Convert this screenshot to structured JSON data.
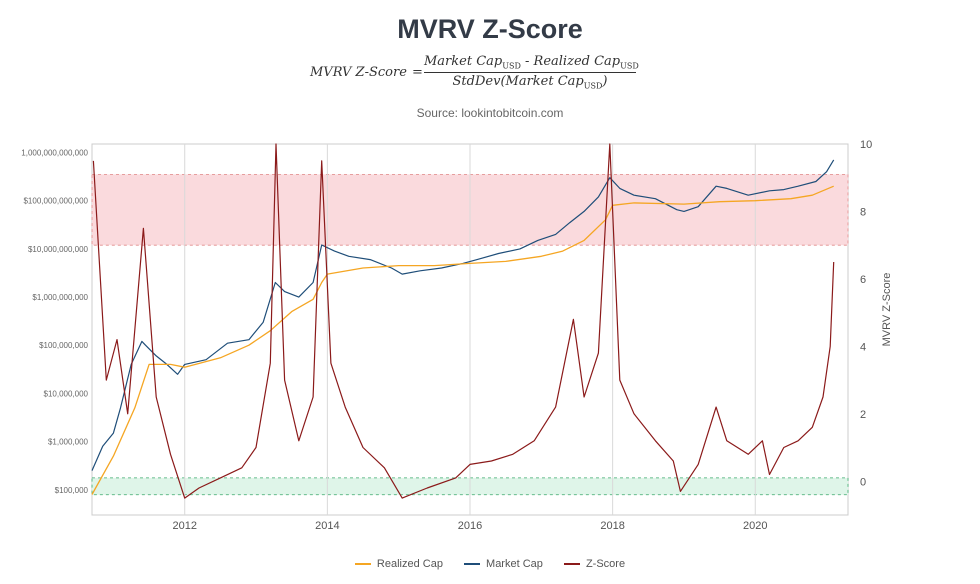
{
  "title": "MVRV Z-Score",
  "formula": {
    "lhs": "MVRV Z-Score",
    "eq": "=",
    "num_a": "Market Cap",
    "num_a_sub": "USD",
    "num_op": " - ",
    "num_b": "Realized Cap",
    "num_b_sub": "USD",
    "den_a": "StdDev(Market Cap",
    "den_a_sub": "USD",
    "den_b": ")"
  },
  "source": "Source: lookintobitcoin.com",
  "colors": {
    "realized": "#f5a623",
    "market": "#1f4e79",
    "zscore": "#8b1a1a",
    "red_band": "#fadadd",
    "green_band": "#dff5e9"
  },
  "chart_data": {
    "type": "line",
    "x_range": [
      2010.7,
      2021.3
    ],
    "x_ticks": [
      2012,
      2014,
      2016,
      2018,
      2020
    ],
    "x_tick_labels": [
      "2012",
      "2014",
      "2016",
      "2018",
      "2020"
    ],
    "left_axis": {
      "scale": "log",
      "range": [
        30000,
        1500000000000
      ],
      "ticks": [
        100000,
        1000000,
        10000000,
        100000000,
        1000000000,
        10000000000,
        100000000000,
        1000000000000
      ],
      "tick_labels": [
        "$100,000",
        "$1,000,000",
        "$10,000,000",
        "$100,000,000",
        "$1,000,000,000",
        "$10,000,000,000",
        "$100,000,000,000",
        "1,000,000,000,000"
      ]
    },
    "right_axis": {
      "label": "MVRV Z-Score",
      "range": [
        -1,
        10
      ],
      "ticks": [
        0,
        2,
        4,
        6,
        8,
        10
      ],
      "tick_labels": [
        "0",
        "2",
        "4",
        "6",
        "8",
        "10"
      ]
    },
    "bands": {
      "red_zone": [
        7,
        9.1
      ],
      "green_zone": [
        -0.4,
        0.1
      ]
    },
    "legend": [
      "Realized Cap",
      "Market Cap",
      "Z-Score"
    ],
    "series": [
      {
        "name": "Market Cap",
        "axis": "left",
        "x": [
          2010.7,
          2010.85,
          2011.0,
          2011.1,
          2011.25,
          2011.4,
          2011.45,
          2011.6,
          2011.75,
          2011.9,
          2012.0,
          2012.3,
          2012.6,
          2012.9,
          2013.1,
          2013.27,
          2013.4,
          2013.6,
          2013.8,
          2013.92,
          2014.1,
          2014.3,
          2014.6,
          2014.9,
          2015.05,
          2015.3,
          2015.6,
          2015.9,
          2016.1,
          2016.4,
          2016.7,
          2016.95,
          2017.2,
          2017.4,
          2017.6,
          2017.8,
          2017.96,
          2018.1,
          2018.3,
          2018.6,
          2018.9,
          2019.0,
          2019.2,
          2019.45,
          2019.6,
          2019.9,
          2020.2,
          2020.4,
          2020.6,
          2020.85,
          2021.0,
          2021.1
        ],
        "y": [
          250000,
          800000,
          1500000,
          5000000,
          40000000,
          120000000,
          100000000,
          60000000,
          40000000,
          25000000,
          40000000,
          50000000,
          110000000,
          130000000,
          300000000,
          2000000000,
          1300000000,
          1000000000,
          2000000000,
          12000000000,
          9000000000,
          7000000000,
          6000000000,
          4000000000,
          3000000000,
          3500000000,
          4000000000,
          5000000000,
          6000000000,
          8000000000,
          10000000000,
          15000000000,
          20000000000,
          35000000000,
          60000000000,
          120000000000,
          300000000000,
          180000000000,
          130000000000,
          110000000000,
          65000000000,
          60000000000,
          75000000000,
          200000000000,
          180000000000,
          130000000000,
          160000000000,
          170000000000,
          200000000000,
          250000000000,
          400000000000,
          700000000000
        ]
      },
      {
        "name": "Realized Cap",
        "axis": "left",
        "x": [
          2010.7,
          2011.0,
          2011.3,
          2011.5,
          2011.8,
          2012.0,
          2012.5,
          2012.9,
          2013.2,
          2013.5,
          2013.8,
          2013.92,
          2014.0,
          2014.5,
          2015.0,
          2015.5,
          2016.0,
          2016.5,
          2017.0,
          2017.3,
          2017.6,
          2017.9,
          2018.0,
          2018.3,
          2019.0,
          2019.5,
          2020.0,
          2020.5,
          2020.8,
          2021.1
        ],
        "y": [
          80000,
          500000,
          5000000,
          40000000,
          40000000,
          35000000,
          55000000,
          100000000,
          200000000,
          500000000,
          900000000,
          2000000000,
          3000000000,
          4000000000,
          4500000000,
          4500000000,
          5000000000,
          5500000000,
          7000000000,
          9000000000,
          15000000000,
          40000000000,
          80000000000,
          90000000000,
          85000000000,
          95000000000,
          100000000000,
          110000000000,
          130000000000,
          200000000000
        ]
      },
      {
        "name": "Z-Score",
        "axis": "right",
        "x": [
          2010.72,
          2010.9,
          2011.05,
          2011.2,
          2011.42,
          2011.6,
          2011.8,
          2012.0,
          2012.2,
          2012.5,
          2012.8,
          2013.0,
          2013.2,
          2013.28,
          2013.4,
          2013.6,
          2013.8,
          2013.92,
          2014.05,
          2014.25,
          2014.5,
          2014.8,
          2015.05,
          2015.4,
          2015.8,
          2016.0,
          2016.3,
          2016.6,
          2016.9,
          2017.2,
          2017.45,
          2017.6,
          2017.8,
          2017.96,
          2018.1,
          2018.3,
          2018.6,
          2018.85,
          2018.95,
          2019.2,
          2019.45,
          2019.6,
          2019.9,
          2020.1,
          2020.2,
          2020.4,
          2020.6,
          2020.8,
          2020.95,
          2021.05,
          2021.1
        ],
        "y": [
          9.5,
          3.0,
          4.2,
          2.0,
          7.5,
          2.5,
          0.8,
          -0.5,
          -0.2,
          0.1,
          0.4,
          1.0,
          3.5,
          10.0,
          3.0,
          1.2,
          2.5,
          9.5,
          3.5,
          2.2,
          1.0,
          0.4,
          -0.5,
          -0.2,
          0.1,
          0.5,
          0.6,
          0.8,
          1.2,
          2.2,
          4.8,
          2.5,
          3.8,
          10.0,
          3.0,
          2.0,
          1.2,
          0.6,
          -0.3,
          0.5,
          2.2,
          1.2,
          0.8,
          1.2,
          0.2,
          1.0,
          1.2,
          1.6,
          2.5,
          4.0,
          6.5
        ]
      }
    ]
  }
}
